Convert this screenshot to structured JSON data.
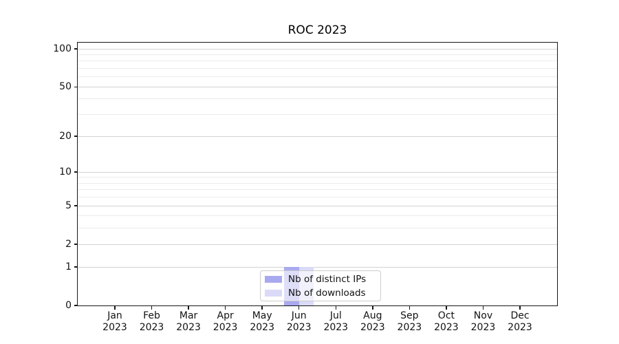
{
  "chart_data": {
    "type": "bar",
    "title": "ROC 2023",
    "categories": [
      "Jan",
      "Feb",
      "Mar",
      "Apr",
      "May",
      "Jun",
      "Jul",
      "Aug",
      "Sep",
      "Oct",
      "Nov",
      "Dec"
    ],
    "category_year": "2023",
    "series": [
      {
        "name": "Nb of distinct IPs",
        "color": "#a9a9f0",
        "values": [
          0,
          0,
          0,
          0,
          0,
          1,
          0,
          0,
          0,
          0,
          0,
          0
        ]
      },
      {
        "name": "Nb of downloads",
        "color": "#dadaf8",
        "values": [
          0,
          0,
          0,
          0,
          0,
          1,
          0,
          0,
          0,
          0,
          0,
          0
        ]
      }
    ],
    "xlabel": "",
    "ylabel": "",
    "yscale": "log1p",
    "ylim": [
      0,
      112
    ],
    "yticks": [
      0,
      1,
      2,
      5,
      10,
      20,
      50,
      100
    ],
    "minor_gridlines": [
      3,
      4,
      6,
      7,
      8,
      9,
      30,
      40,
      60,
      70,
      80,
      90
    ],
    "grid": true,
    "legend_position": "lower-center-inside"
  }
}
